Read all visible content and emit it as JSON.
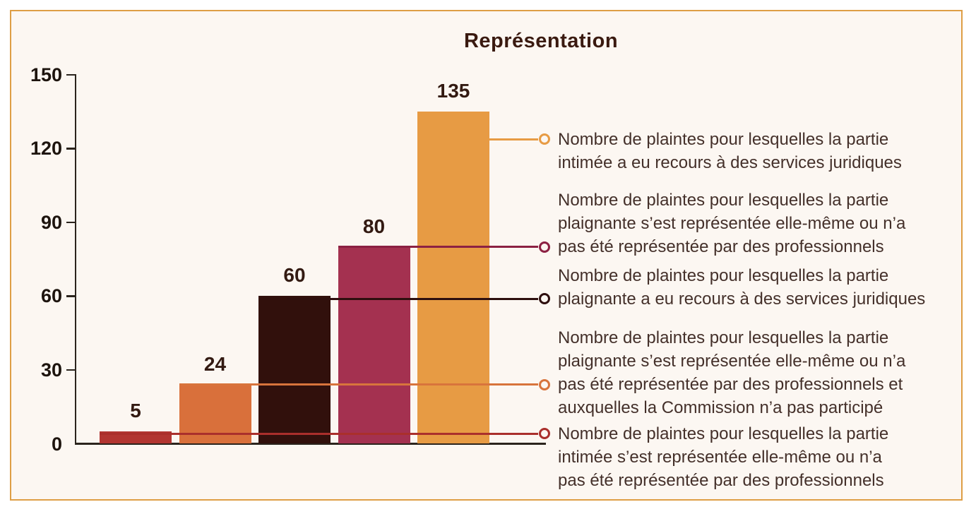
{
  "figure": {
    "background": "#fcf7f2",
    "border_color": "#de9e45",
    "title_color": "#3a1a10",
    "text_color": "#44302a"
  },
  "chart_data": {
    "type": "bar",
    "title": "Représentation",
    "xlabel": "",
    "ylabel": "",
    "ylim": [
      0,
      150
    ],
    "y_ticks": [
      "150",
      "120",
      "90",
      "60",
      "30",
      "0"
    ],
    "y_tick_values": [
      150,
      120,
      90,
      60,
      30,
      0
    ],
    "grid": false,
    "legend_position": "right-callouts",
    "categories": [
      "Nombre de plaintes pour lesquelles la partie intimée s’est représentée elle-même ou n’a pas été représentée par des professionnels",
      "Nombre de plaintes pour lesquelles la partie plaignante s’est représentée elle-même ou n’a pas été représentée par des professionnels et auxquelles la Commission n’a pas participé",
      "Nombre de plaintes pour lesquelles la partie plaignante a eu recours à des services juridiques",
      "Nombre de plaintes pour lesquelles la partie plaignante s’est représentée elle-même ou n’a pas été représentée par des professionnels",
      "Nombre de plaintes pour lesquelles la partie intimée a eu recours à des services juridiques"
    ],
    "values": [
      5,
      24,
      60,
      80,
      135
    ],
    "value_labels": [
      "5",
      "24",
      "60",
      "80",
      "135"
    ],
    "bar_colors": [
      "#b23531",
      "#d9703b",
      "#31100c",
      "#a43150",
      "#e79b44"
    ],
    "callouts": [
      {
        "bar_index": 4,
        "color": "#e79b44",
        "lines": [
          "Nombre de plaintes pour lesquelles la partie",
          "intimée a eu recours à des services juridiques"
        ]
      },
      {
        "bar_index": 3,
        "color": "#8c2143",
        "lines": [
          "Nombre de plaintes pour lesquelles la partie",
          "plaignante s’est représentée elle-même ou n’a",
          "pas été représentée par des professionnels"
        ]
      },
      {
        "bar_index": 2,
        "color": "#2e0f0e",
        "lines": [
          "Nombre de plaintes pour lesquelles la partie",
          "plaignante a eu recours à des services juridiques"
        ]
      },
      {
        "bar_index": 1,
        "color": "#d8743c",
        "lines": [
          "Nombre de plaintes pour lesquelles la partie",
          "plaignante s’est représentée elle-même ou n’a",
          "pas été représentée par des professionnels et",
          "auxquelles la Commission n’a pas participé"
        ]
      },
      {
        "bar_index": 0,
        "color": "#aa2f2c",
        "lines": [
          "Nombre de plaintes pour lesquelles la partie",
          "intimée s’est représentée elle-même ou n’a",
          "pas été représentée par des professionnels"
        ]
      }
    ]
  }
}
